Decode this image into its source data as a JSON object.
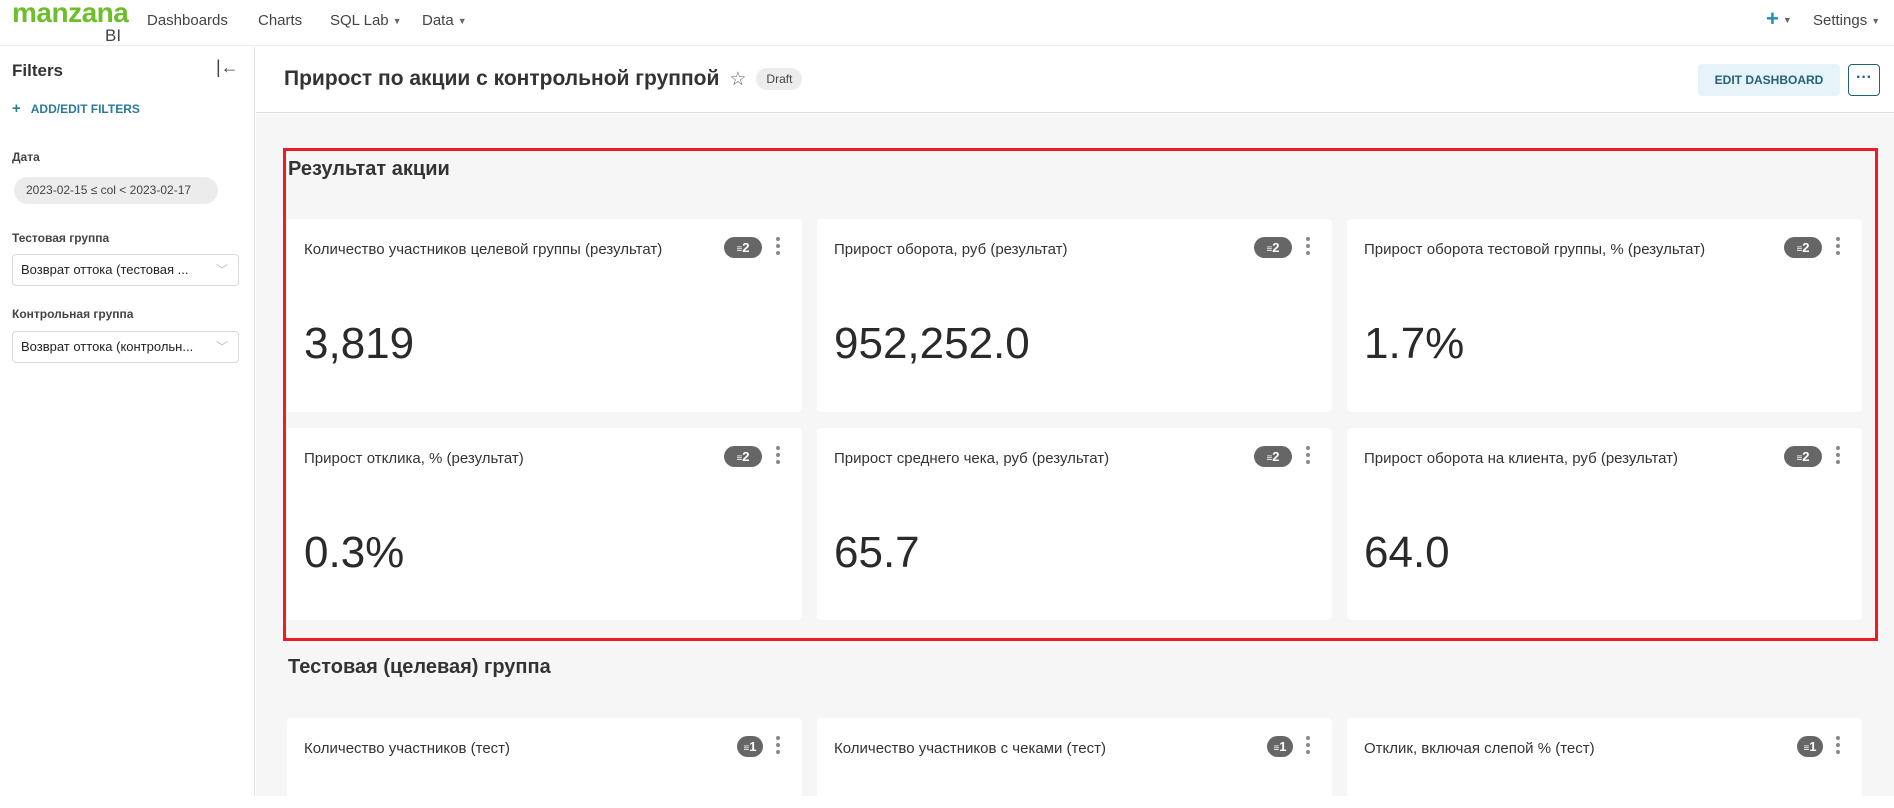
{
  "nav": {
    "logo_main": "manzana",
    "logo_sub": "BI",
    "items": [
      "Dashboards",
      "Charts",
      "SQL Lab",
      "Data"
    ],
    "plus_icon": "plus-icon",
    "settings": "Settings"
  },
  "sidebar": {
    "title": "Filters",
    "add_filters": "ADD/EDIT FILTERS",
    "filters": [
      {
        "label": "Дата",
        "value": "2023-02-15 ≤ col < 2023-02-17"
      },
      {
        "label": "Тестовая группа",
        "value": "Возврат оттока (тестовая ..."
      },
      {
        "label": "Контрольная группа",
        "value": "Возврат оттока (контрольн..."
      }
    ]
  },
  "header": {
    "title": "Прирост по акции с контрольной группой",
    "status": "Draft",
    "edit_button": "EDIT DASHBOARD",
    "more_button": "···"
  },
  "highlight_color": "#ed1c24",
  "sections": [
    {
      "title": "Результат акции",
      "cards": [
        {
          "title": "Количество участников целевой группы (результат)",
          "value": "3,819",
          "filters": "2"
        },
        {
          "title": "Прирост оборота, руб (результат)",
          "value": "952,252.0",
          "filters": "2"
        },
        {
          "title": "Прирост оборота тестовой группы, % (результат)",
          "value": "1.7%",
          "filters": "2"
        },
        {
          "title": "Прирост отклика, % (результат)",
          "value": "0.3%",
          "filters": "2"
        },
        {
          "title": "Прирост среднего чека, руб (результат)",
          "value": "65.7",
          "filters": "2"
        },
        {
          "title": "Прирост оборота на клиента, руб (результат)",
          "value": "64.0",
          "filters": "2"
        }
      ]
    },
    {
      "title": "Тестовая (целевая) группа",
      "cards": [
        {
          "title": "Количество участников (тест)",
          "filters": "1"
        },
        {
          "title": "Количество участников с чеками (тест)",
          "filters": "1"
        },
        {
          "title": "Отклик, включая слепой % (тест)",
          "filters": "1"
        }
      ]
    }
  ]
}
